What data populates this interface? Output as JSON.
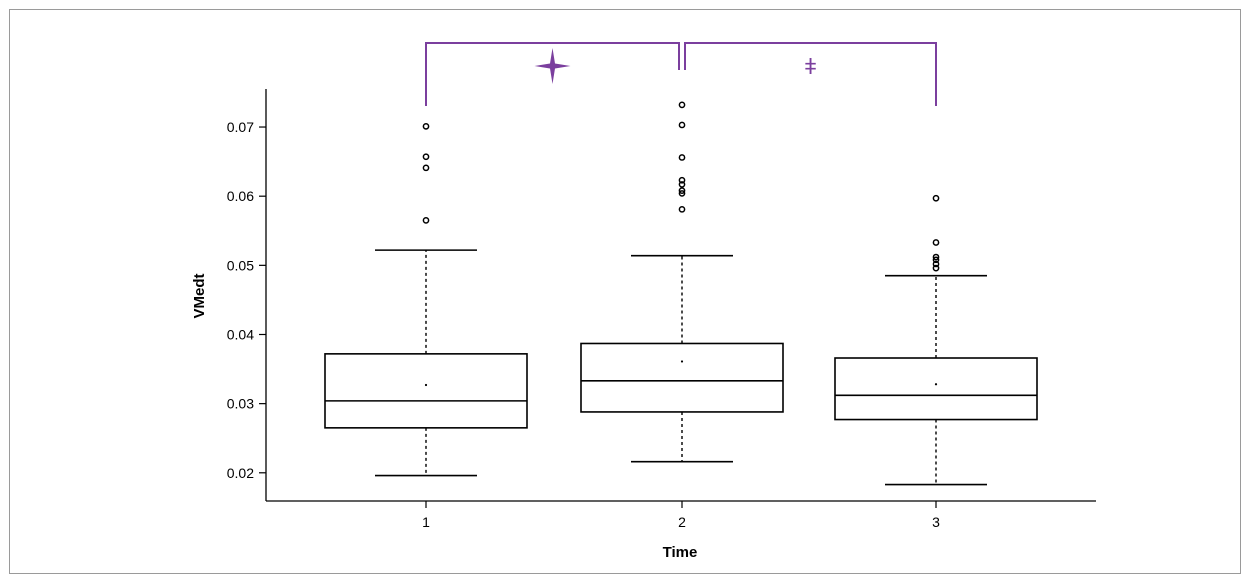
{
  "chart_data": {
    "type": "boxplot",
    "xlabel": "Time",
    "ylabel": "VMedt",
    "categories": [
      "1",
      "2",
      "3"
    ],
    "ylim": [
      0.0165,
      0.0755
    ],
    "yticks": [
      "0.02",
      "0.03",
      "0.04",
      "0.05",
      "0.06",
      "0.07"
    ],
    "grid": false,
    "boxes": [
      {
        "category": "1",
        "whisker_low": 0.0196,
        "q1": 0.0265,
        "median": 0.0304,
        "q3": 0.0372,
        "whisker_high": 0.0522,
        "mean": 0.0327,
        "outliers": [
          0.0565,
          0.0641,
          0.0657,
          0.0701
        ]
      },
      {
        "category": "2",
        "whisker_low": 0.0216,
        "q1": 0.0288,
        "median": 0.0333,
        "q3": 0.0387,
        "whisker_high": 0.0514,
        "mean": 0.0361,
        "outliers": [
          0.0581,
          0.0604,
          0.0608,
          0.0617,
          0.0623,
          0.0656,
          0.0703,
          0.0732
        ]
      },
      {
        "category": "3",
        "whisker_low": 0.0183,
        "q1": 0.0277,
        "median": 0.0312,
        "q3": 0.0366,
        "whisker_high": 0.0485,
        "mean": 0.0328,
        "outliers": [
          0.0496,
          0.0502,
          0.0508,
          0.0512,
          0.0533,
          0.0597
        ]
      }
    ],
    "significance": [
      {
        "from": "1",
        "to": "2",
        "marker": "star-icon",
        "symbol": ""
      },
      {
        "from": "2",
        "to": "3",
        "marker": "",
        "symbol": "ǂ"
      }
    ],
    "colors": {
      "box": "#000000",
      "bracket": "#7b3f9e",
      "border": "#9a9a9a"
    }
  }
}
